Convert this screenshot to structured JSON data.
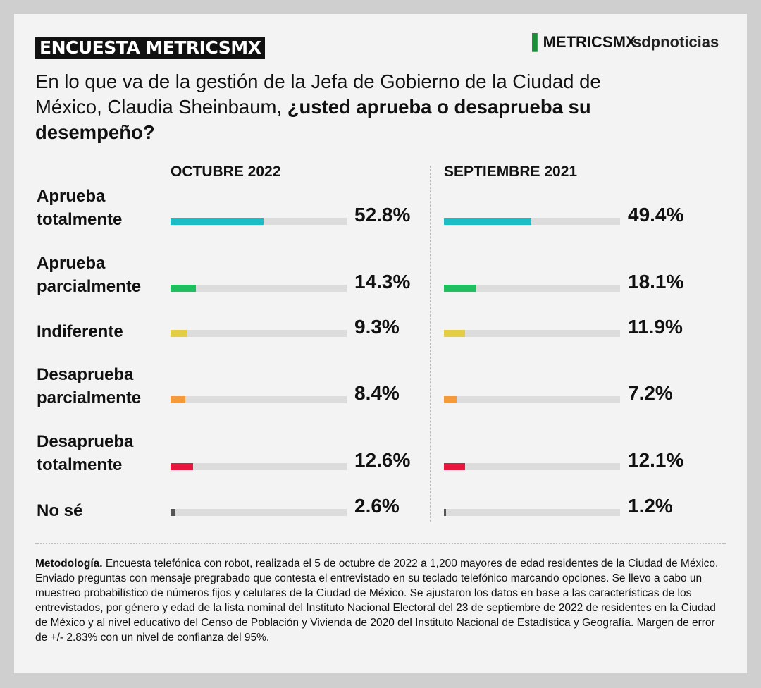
{
  "header": {
    "badge": "ENCUESTA METRICSMX",
    "logos": [
      "METRICSMX",
      "sdpnoticias"
    ]
  },
  "question": {
    "text": "En lo que va de la gestión de la Jefa de Gobierno de la Ciudad de México, Claudia Sheinbaum,",
    "bold": "¿usted aprueba o desaprueba su desempeño?"
  },
  "chart_data": [
    {
      "type": "bar",
      "title": "OCTUBRE 2022",
      "categories": [
        "Aprueba totalmente",
        "Aprueba parcialmente",
        "Indiferente",
        "Desaprueba parcialmente",
        "Desaprueba totalmente",
        "No sé"
      ],
      "values": [
        52.8,
        14.3,
        9.3,
        8.4,
        12.6,
        2.6
      ],
      "value_labels": [
        "52.8%",
        "14.3%",
        "9.3%",
        "8.4%",
        "12.6%",
        "2.6%"
      ],
      "colors": [
        "#1bbcc4",
        "#1fbf60",
        "#e3cd45",
        "#f59a3a",
        "#e8163d",
        "#555555"
      ],
      "xlim": [
        0,
        100
      ]
    },
    {
      "type": "bar",
      "title": "SEPTIEMBRE 2021",
      "values": [
        49.4,
        18.1,
        11.9,
        7.2,
        12.1,
        1.2
      ],
      "value_labels": [
        "49.4%",
        "18.1%",
        "11.9%",
        "7.2%",
        "12.1%",
        "1.2%"
      ],
      "colors": [
        "#1bbcc4",
        "#1fbf60",
        "#e3cd45",
        "#f59a3a",
        "#e8163d",
        "#555555"
      ],
      "xlim": [
        0,
        100
      ]
    }
  ],
  "methodology": {
    "label": "Metodología.",
    "text": "Encuesta telefónica con robot, realizada el 5 de octubre de 2022 a 1,200 mayores de edad residentes de la Ciudad de México. Enviado preguntas con mensaje pregrabado que contesta el entrevistado en su teclado telefónico marcando opciones. Se llevo a cabo un muestreo probabilístico de números fijos y celulares de la Ciudad de México. Se ajustaron los datos en base a las características de los entrevistados, por género y edad de la lista nominal del Instituto Nacional Electoral del 23 de septiembre de 2022 de residentes en la Ciudad de México y al nivel educativo del Censo de Población y Vivienda de 2020 del Instituto Nacional de Estadística y Geografía. Margen de error de +/- 2.83% con un nivel de confianza del 95%."
  }
}
